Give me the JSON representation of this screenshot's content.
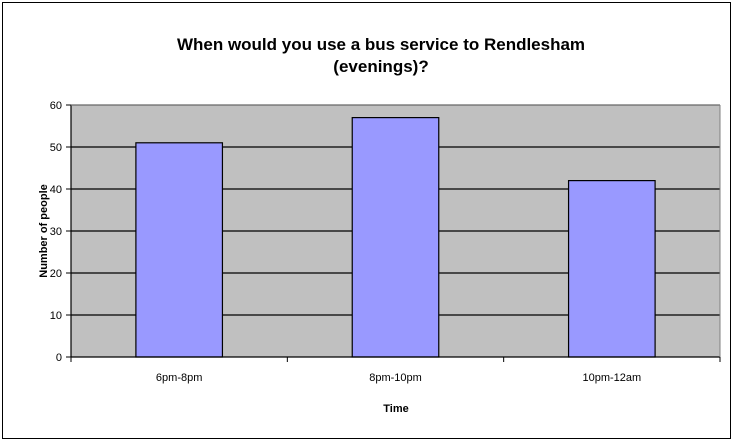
{
  "chart_data": {
    "type": "bar",
    "title_lines": [
      "When would you use a bus service to Rendlesham",
      "(evenings)?"
    ],
    "categories": [
      "6pm-8pm",
      "8pm-10pm",
      "10pm-12am"
    ],
    "values": [
      51,
      57,
      42
    ],
    "xlabel": "Time",
    "ylabel": "Number of people",
    "ylim": [
      0,
      60
    ],
    "yticks": [
      "0",
      "10",
      "20",
      "30",
      "40",
      "50",
      "60"
    ],
    "grid": true,
    "legend": "none",
    "colors": {
      "bar_fill": "#9999ff",
      "bar_stroke": "#000000",
      "plot_background": "#c0c0c0",
      "gridline": "#000000"
    }
  }
}
